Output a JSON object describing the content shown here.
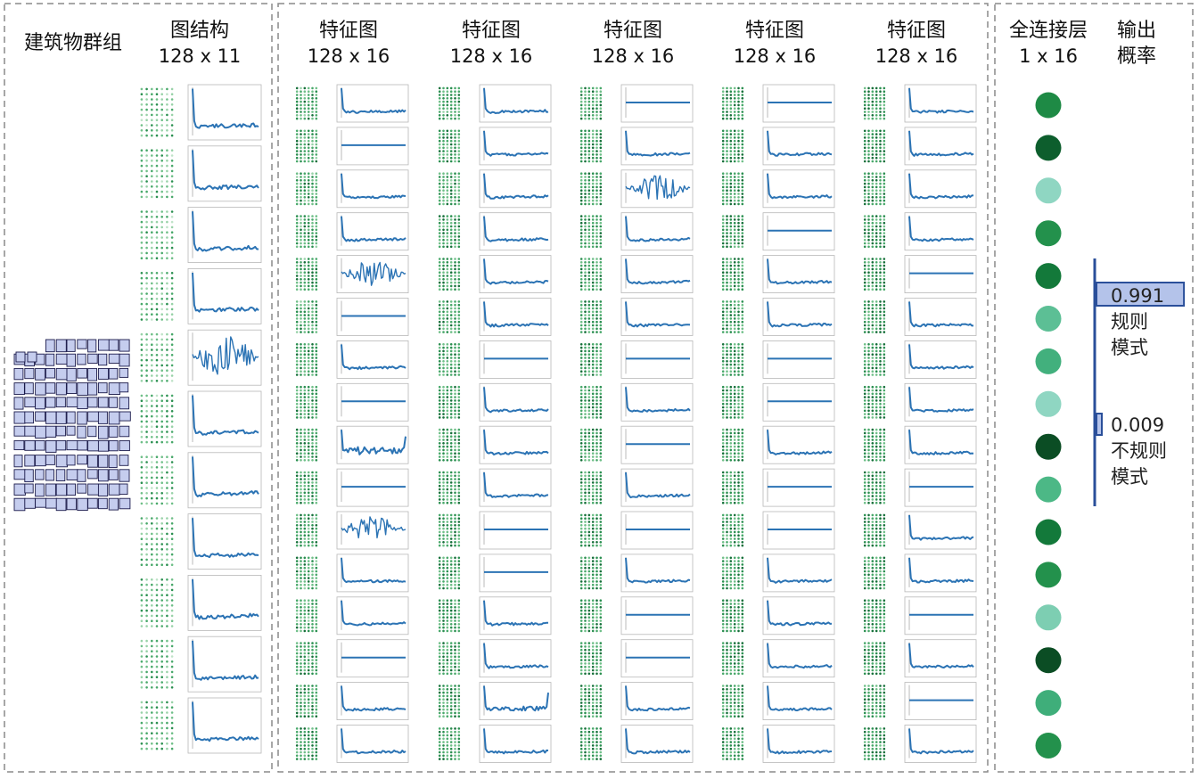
{
  "sections": {
    "group_title": "建筑物群组",
    "graph_structure": {
      "title": "图结构",
      "dims": "128 x 11"
    },
    "feature_maps": [
      {
        "title": "特征图",
        "dims": "128 x 16"
      },
      {
        "title": "特征图",
        "dims": "128 x 16"
      },
      {
        "title": "特征图",
        "dims": "128 x 16"
      },
      {
        "title": "特征图",
        "dims": "128 x 16"
      },
      {
        "title": "特征图",
        "dims": "128 x 16"
      }
    ],
    "fc_layer": {
      "title": "全连接层",
      "dims": "1 x 16"
    },
    "output": {
      "title_line1": "输出",
      "title_line2": "概率"
    }
  },
  "graph_curves": [
    "spike",
    "spike",
    "spike",
    "spike",
    "noisy",
    "spike",
    "spike",
    "spike",
    "spike",
    "spike",
    "spike"
  ],
  "feature_columns": [
    [
      "spike",
      "flat",
      "spike",
      "spike",
      "noisy",
      "flat",
      "spike",
      "flat",
      "spike_noisy",
      "flat",
      "noisy",
      "spike",
      "spike",
      "flat",
      "spike",
      "spike"
    ],
    [
      "spike",
      "spike",
      "spike",
      "spike",
      "spike",
      "spike",
      "flat",
      "spike",
      "spike",
      "spike",
      "flat",
      "flat",
      "spike",
      "spike",
      "spike_end",
      "spike"
    ],
    [
      "flat",
      "spike",
      "noisy",
      "spike",
      "spike",
      "spike",
      "flat",
      "spike",
      "flat",
      "spike",
      "flat",
      "spike",
      "flat",
      "flat",
      "spike",
      "spike"
    ],
    [
      "flat",
      "spike",
      "spike",
      "flat",
      "spike",
      "spike",
      "flat",
      "flat",
      "spike",
      "flat",
      "flat",
      "spike",
      "spike",
      "spike",
      "spike",
      "spike"
    ],
    [
      "spike",
      "spike",
      "spike",
      "spike",
      "flat",
      "spike",
      "spike",
      "spike",
      "spike",
      "flat",
      "spike",
      "spike",
      "flat",
      "spike",
      "flat",
      "spike"
    ]
  ],
  "fc_nodes": [
    {
      "color": "#1e8a45"
    },
    {
      "color": "#0d5e2d"
    },
    {
      "color": "#8fd6c2"
    },
    {
      "color": "#23914c"
    },
    {
      "color": "#13793a"
    },
    {
      "color": "#5cbf95"
    },
    {
      "color": "#42b07d"
    },
    {
      "color": "#8fd6c2"
    },
    {
      "color": "#0b4d24"
    },
    {
      "color": "#4cb886"
    },
    {
      "color": "#13793a"
    },
    {
      "color": "#23914c"
    },
    {
      "color": "#7dceb2"
    },
    {
      "color": "#0b4d24"
    },
    {
      "color": "#3fae7a"
    },
    {
      "color": "#23914c"
    }
  ],
  "outputs": [
    {
      "value": "0.991",
      "probability": 0.991,
      "label_line1": "规则",
      "label_line2": "模式"
    },
    {
      "value": "0.009",
      "probability": 0.009,
      "label_line1": "不规则",
      "label_line2": "模式"
    }
  ],
  "colors": {
    "curve": "#2b73b4",
    "building_fill": "#c5cdee",
    "building_stroke": "#1a1a4a",
    "bar_fill": "#b4c3ea",
    "bar_stroke": "#2a4f9a",
    "axis_line": "#2a4f9a",
    "dash": "#8a8a8a"
  }
}
